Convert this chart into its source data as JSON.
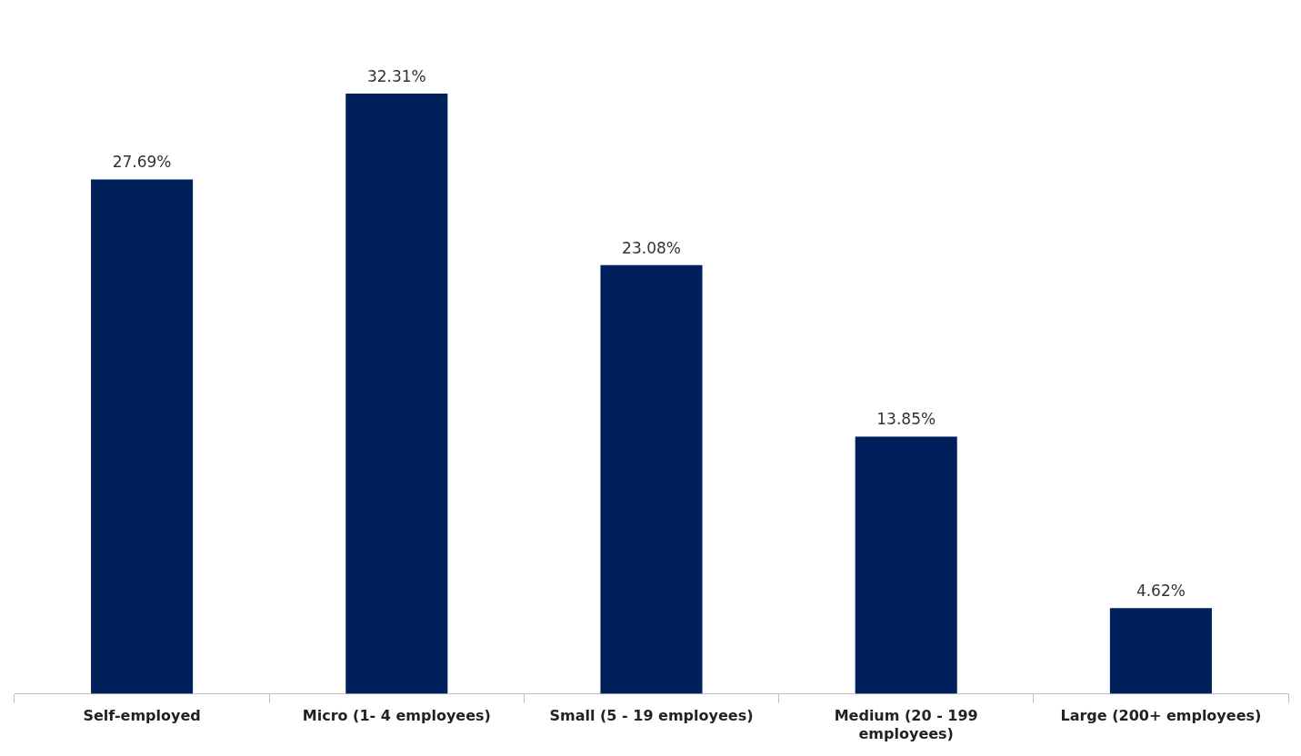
{
  "chart_data": {
    "type": "bar",
    "categories": [
      "Self-employed",
      "Micro (1- 4 employees)",
      "Small (5 - 19 employees)",
      "Medium (20 - 199 employees)",
      "Large (200+ employees)"
    ],
    "values": [
      27.69,
      32.31,
      23.08,
      13.85,
      4.62
    ],
    "value_labels": [
      "27.69%",
      "32.31%",
      "23.08%",
      "13.85%",
      "4.62%"
    ],
    "color": "#00205b",
    "relative": false,
    "grid": false,
    "legend": false
  }
}
